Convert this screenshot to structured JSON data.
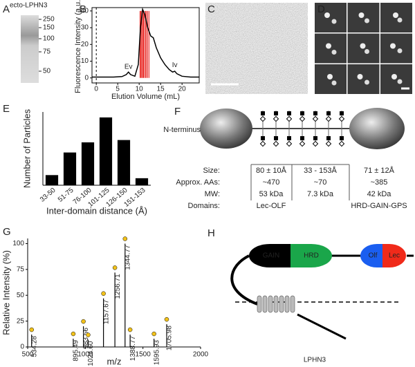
{
  "panel_labels": [
    "A",
    "B",
    "C",
    "D",
    "E",
    "F",
    "G",
    "H"
  ],
  "gel": {
    "label": "ecto-LPHN3",
    "markers": [
      250,
      150,
      100,
      75,
      50
    ]
  },
  "chart_data": [
    {
      "type": "line",
      "xlabel": "Elution Volume (mL)",
      "ylabel": "Fluorescence Intensity (a.u.)",
      "x": [
        -1,
        0,
        2,
        4,
        6,
        7,
        7.5,
        8,
        9,
        9.8,
        10.3,
        10.8,
        11.3,
        12,
        12.7,
        13.3,
        14,
        15,
        16,
        17,
        17.8,
        18.3,
        18.8,
        20,
        22,
        24
      ],
      "values": [
        0.5,
        0.5,
        0.5,
        0.5,
        0.8,
        2,
        3.5,
        2,
        1,
        8,
        30,
        41,
        38,
        30,
        25,
        24,
        18,
        12,
        8,
        5,
        3.5,
        4,
        2.5,
        1,
        0.5,
        0.5
      ],
      "color": "#000000",
      "highlight_x": [
        10.2,
        10.4,
        10.6,
        10.8,
        11.0,
        11.2,
        11.5,
        11.7,
        12.0,
        12.3
      ],
      "highlight_color": "#e8231f",
      "annotations": [
        "Ev",
        "Iv"
      ],
      "xlim": [
        -1,
        24
      ],
      "xticks": [
        0,
        5,
        10,
        15,
        20
      ],
      "ylim": [
        -3,
        42
      ],
      "yticks": [
        0,
        10,
        20,
        30,
        40
      ]
    },
    {
      "type": "bar",
      "xlabel": "Inter-domain distance (Å)",
      "ylabel": "Number of Particles",
      "categories": [
        "33-50",
        "51-75",
        "76-100",
        "101-125",
        "126-150",
        "151-153"
      ],
      "values": [
        65,
        210,
        275,
        435,
        290,
        45
      ],
      "color": "#000000",
      "ylim": [
        0,
        470
      ]
    },
    {
      "type": "spectrum",
      "xlabel": "m/z",
      "ylabel": "Relative Intensity (%)",
      "x": [
        534.28,
        895.49,
        983.56,
        1024.6,
        1157.67,
        1256.71,
        1344.77,
        1388.77,
        1595.93,
        1705.98
      ],
      "x_labels": [
        "534.28",
        "895.49",
        "983.56",
        "1024.60",
        "1157.67",
        "1256.71",
        "1344.77",
        "1388.77",
        "1595.93",
        "1705.98"
      ],
      "values": [
        12,
        8,
        20,
        7,
        47,
        72,
        100,
        12,
        8,
        22
      ],
      "color": "#000000",
      "xlim": [
        500,
        2000
      ],
      "xticks": [
        500,
        1000,
        1500,
        2000
      ],
      "ylim": [
        0,
        105
      ],
      "yticks": [
        0,
        25,
        50,
        75,
        100
      ]
    }
  ],
  "domain_table": {
    "n_terminus": "N-terminus",
    "rows": [
      {
        "label": "Size:",
        "values": [
          "80 ± 10Å",
          "33 - 153Å",
          "71 ± 12Å"
        ]
      },
      {
        "label": "Approx. AAs:",
        "values": [
          "~470",
          "~70",
          "~385"
        ]
      },
      {
        "label": "MW:",
        "values": [
          "53 kDa",
          "7.3 kDa",
          "42 kDa"
        ]
      },
      {
        "label": "Domains:",
        "values": [
          "Lec-OLF",
          null,
          "HRD-GAIN-GPS"
        ]
      }
    ]
  },
  "topology": {
    "domains": [
      "GAIN",
      "HRD",
      "Olf",
      "Lec"
    ],
    "name": "LPHN3"
  }
}
